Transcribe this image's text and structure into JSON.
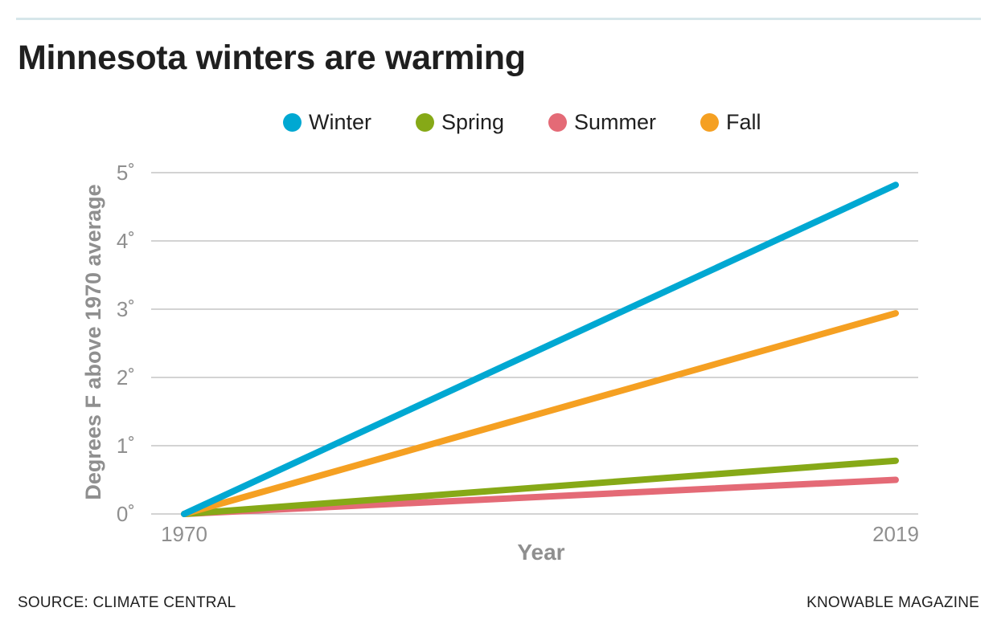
{
  "header": {
    "title": "Minnesota winters are warming"
  },
  "footer": {
    "source": "SOURCE: CLIMATE CENTRAL",
    "credit": "KNOWABLE MAGAZINE"
  },
  "colors": {
    "winter": "#00a8d2",
    "spring": "#86a917",
    "summer": "#e46a76",
    "fall": "#f5a022",
    "grid": "#b9b9b9",
    "axis_text": "#8f8f8f"
  },
  "chart_data": {
    "type": "line",
    "title": "Minnesota winters are warming",
    "xlabel": "Year",
    "ylabel": "Degrees F above 1970 average",
    "x": [
      1970,
      2019
    ],
    "xlim": [
      1970,
      2019
    ],
    "ylim": [
      0,
      5
    ],
    "x_ticks": [
      {
        "value": 1970,
        "label": "1970"
      },
      {
        "value": 2019,
        "label": "2019"
      }
    ],
    "y_ticks": [
      {
        "value": 0,
        "label": "0˚"
      },
      {
        "value": 1,
        "label": "1˚"
      },
      {
        "value": 2,
        "label": "2˚"
      },
      {
        "value": 3,
        "label": "3˚"
      },
      {
        "value": 4,
        "label": "4˚"
      },
      {
        "value": 5,
        "label": "5˚"
      }
    ],
    "grid": true,
    "legend_position": "top-center",
    "series": [
      {
        "name": "Winter",
        "color": "#00a8d2",
        "values": [
          0,
          4.82
        ]
      },
      {
        "name": "Spring",
        "color": "#86a917",
        "values": [
          0,
          0.78
        ]
      },
      {
        "name": "Summer",
        "color": "#e46a76",
        "values": [
          0,
          0.5
        ]
      },
      {
        "name": "Fall",
        "color": "#f5a022",
        "values": [
          0,
          2.94
        ]
      }
    ],
    "draw_order": [
      "Summer",
      "Spring",
      "Fall",
      "Winter"
    ]
  }
}
